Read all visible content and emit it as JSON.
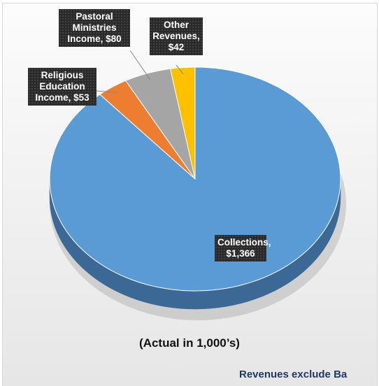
{
  "chart_data": {
    "type": "pie",
    "subtitle": "(Actual in 1,000’s)",
    "footnote": "Revenues exclude Ba",
    "slices": [
      {
        "name": "Collections",
        "value": 1366,
        "label": "Collections,\n$1,366",
        "color": "#5b9bd5",
        "side_color": "#3c6896"
      },
      {
        "name": "Religious Education Income",
        "value": 53,
        "label": "Religious\nEducation\nIncome, $53",
        "color": "#ed7d31",
        "side_color": "#a4541e"
      },
      {
        "name": "Pastoral Ministries Income",
        "value": 80,
        "label": "Pastoral\nMinistries\nIncome, $80",
        "color": "#a5a5a5",
        "side_color": "#737373"
      },
      {
        "name": "Other Revenues",
        "value": 42,
        "label": "Other\nRevenues,\n$42",
        "color": "#ffc000",
        "side_color": "#b38600"
      }
    ],
    "footnote_color": "#1f3864"
  }
}
